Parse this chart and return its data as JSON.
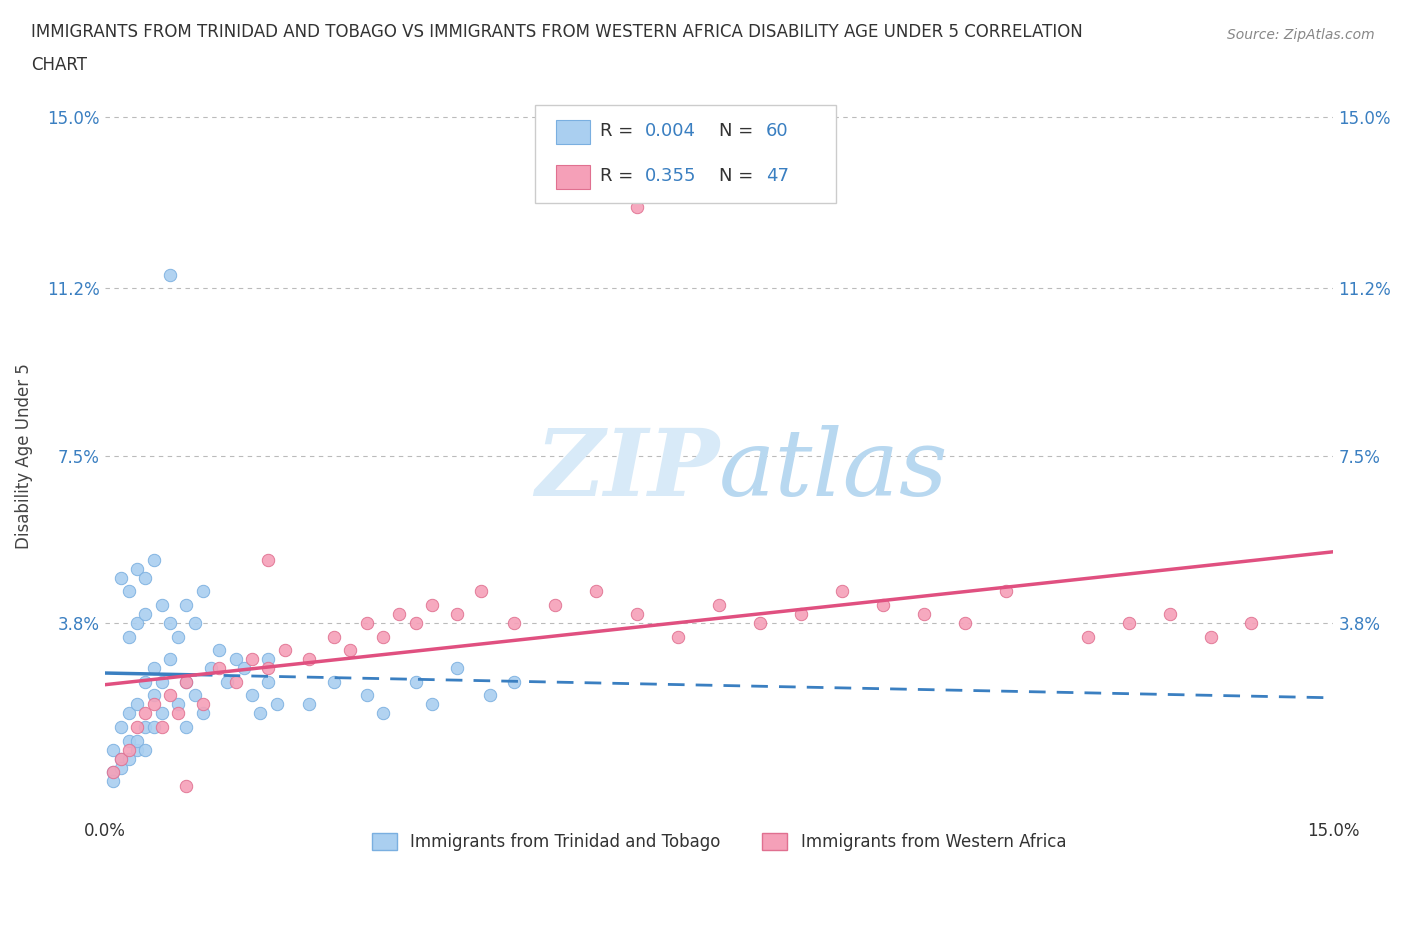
{
  "title_line1": "IMMIGRANTS FROM TRINIDAD AND TOBAGO VS IMMIGRANTS FROM WESTERN AFRICA DISABILITY AGE UNDER 5 CORRELATION",
  "title_line2": "CHART",
  "source_text": "Source: ZipAtlas.com",
  "ylabel": "Disability Age Under 5",
  "xlim": [
    0.0,
    0.15
  ],
  "ylim": [
    -0.005,
    0.155
  ],
  "ytick_values": [
    0.0,
    0.038,
    0.075,
    0.112,
    0.15
  ],
  "ytick_labels": [
    "",
    "3.8%",
    "7.5%",
    "11.2%",
    "15.0%"
  ],
  "xtick_values": [
    0.0,
    0.15
  ],
  "xtick_labels": [
    "0.0%",
    "15.0%"
  ],
  "R_blue": 0.004,
  "N_blue": 60,
  "R_pink": 0.355,
  "N_pink": 47,
  "legend_label_blue": "Immigrants from Trinidad and Tobago",
  "legend_label_pink": "Immigrants from Western Africa",
  "trendline_blue_color": "#3a7fc1",
  "trendline_pink_color": "#e05080",
  "scatter_blue_color": "#aacff0",
  "scatter_blue_edge": "#7aafe0",
  "scatter_pink_color": "#f5a0b8",
  "scatter_pink_edge": "#e07090",
  "grid_color": "#bbbbbb",
  "watermark_color": "#d8eaf8",
  "background_color": "#ffffff"
}
